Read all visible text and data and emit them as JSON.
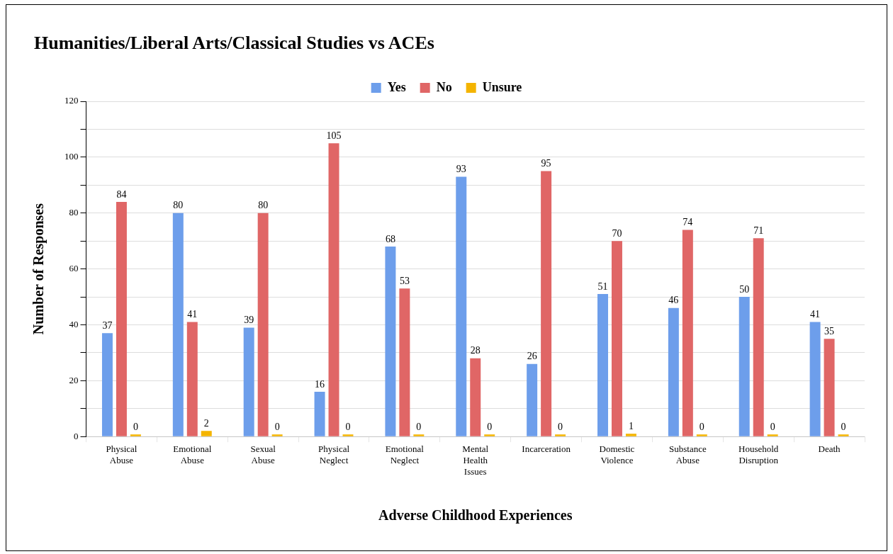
{
  "chart_data": {
    "type": "bar",
    "title": "Humanities/Liberal Arts/Classical Studies vs ACEs",
    "xlabel": "Adverse Childhood Experiences",
    "ylabel": "Number of Responses",
    "categories": [
      "Physical Abuse",
      "Emotional Abuse",
      "Sexual Abuse",
      "Physical Neglect",
      "Emotional Neglect",
      "Mental Health Issues",
      "Incarceration",
      "Domestic Violence",
      "Substance Abuse",
      "Household Disruption",
      "Death"
    ],
    "series": [
      {
        "name": "Yes",
        "color": "#6d9eeb",
        "values": [
          37,
          80,
          39,
          16,
          68,
          93,
          26,
          51,
          46,
          50,
          41
        ]
      },
      {
        "name": "No",
        "color": "#e06666",
        "values": [
          84,
          41,
          80,
          105,
          53,
          28,
          95,
          70,
          74,
          71,
          35
        ]
      },
      {
        "name": "Unsure",
        "color": "#f4b400",
        "values": [
          0,
          2,
          0,
          0,
          0,
          0,
          0,
          1,
          0,
          0,
          0
        ]
      }
    ],
    "ylim": [
      0,
      120
    ],
    "yticks": [
      0,
      {
        "value": 10,
        "label": null
      },
      20,
      {
        "value": 30,
        "label": null
      },
      40,
      {
        "value": 50,
        "label": null
      },
      60,
      {
        "value": 70,
        "label": null
      },
      80,
      {
        "value": 90,
        "label": null
      },
      100,
      {
        "value": 110,
        "label": null
      },
      120
    ],
    "grid": true,
    "legend": "top",
    "data_labels": true
  }
}
